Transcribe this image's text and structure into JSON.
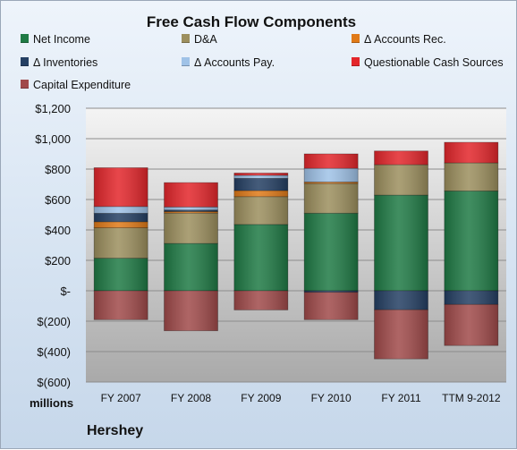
{
  "chart_data": {
    "type": "bar",
    "stacked": true,
    "title": "Free Cash Flow Components",
    "categories": [
      "FY 2007",
      "FY 2008",
      "FY 2009",
      "FY 2010",
      "FY 2011",
      "TTM 9-2012"
    ],
    "series": [
      {
        "name": "Net Income",
        "color": "#1f7a45",
        "values": [
          214,
          311,
          436,
          510,
          629,
          656
        ]
      },
      {
        "name": "D&A",
        "color": "#9c8f5e",
        "values": [
          200,
          200,
          183,
          195,
          200,
          185
        ]
      },
      {
        "name": "Δ Accounts Rec.",
        "color": "#e07a18",
        "values": [
          40,
          10,
          40,
          10,
          0,
          0
        ]
      },
      {
        "name": "Δ Inventories",
        "color": "#243f63",
        "values": [
          55,
          10,
          80,
          -10,
          -125,
          -90
        ]
      },
      {
        "name": "Δ Accounts Pay.",
        "color": "#9fc2e7",
        "values": [
          45,
          20,
          20,
          90,
          0,
          0
        ]
      },
      {
        "name": "Questionable Cash Sources",
        "color": "#e3262b",
        "values": [
          255,
          160,
          15,
          95,
          90,
          135
        ]
      },
      {
        "name": "Capital Expenditure",
        "color": "#a04a4a",
        "values": [
          -190,
          -263,
          -126,
          -180,
          -323,
          -270
        ]
      }
    ],
    "ylim": [
      -600,
      1200
    ],
    "yticks": [
      -600,
      -400,
      -200,
      0,
      200,
      400,
      600,
      800,
      1000,
      1200
    ],
    "ytick_labels": [
      "$(600)",
      "$(400)",
      "$(200)",
      "$-",
      "$200",
      "$400",
      "$600",
      "$800",
      "$1,000",
      "$1,200"
    ],
    "units_label": "millions",
    "company": "Hershey",
    "grid": true,
    "legend_placement": "top"
  }
}
